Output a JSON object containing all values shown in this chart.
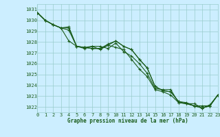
{
  "xlabel": "Graphe pression niveau de la mer (hPa)",
  "ylim": [
    1021.5,
    1031.5
  ],
  "xlim": [
    0,
    23
  ],
  "yticks": [
    1022,
    1023,
    1024,
    1025,
    1026,
    1027,
    1028,
    1029,
    1030,
    1031
  ],
  "xticks": [
    0,
    1,
    2,
    3,
    4,
    5,
    6,
    7,
    8,
    9,
    10,
    11,
    12,
    13,
    14,
    15,
    16,
    17,
    18,
    19,
    20,
    21,
    22,
    23
  ],
  "bg_color": "#cceeff",
  "grid_color": "#99cccc",
  "line_color": "#1a5c1a",
  "tick_color": "#1a5c1a",
  "lines": [
    [
      1030.7,
      1030.0,
      1029.6,
      1029.3,
      1028.1,
      1027.6,
      1027.5,
      1027.6,
      1027.6,
      1027.4,
      1027.9,
      1027.1,
      1026.7,
      1026.0,
      1025.1,
      1023.7,
      1023.6,
      1023.6,
      1022.4,
      1022.3,
      1022.3,
      1021.9,
      1022.2,
      1023.1
    ],
    [
      1030.7,
      1030.0,
      1029.6,
      1029.3,
      1029.1,
      1027.6,
      1027.4,
      1027.6,
      1027.3,
      1027.7,
      1027.5,
      1027.3,
      1026.4,
      1025.5,
      1024.8,
      1023.6,
      1023.4,
      1023.1,
      1022.4,
      1022.3,
      1022.1,
      1021.9,
      1022.1,
      1023.1
    ],
    [
      1030.7,
      1030.0,
      1029.6,
      1029.3,
      1029.4,
      1027.6,
      1027.5,
      1027.4,
      1027.4,
      1027.8,
      1028.1,
      1027.6,
      1027.3,
      1026.4,
      1025.6,
      1023.9,
      1023.5,
      1023.4,
      1022.5,
      1022.4,
      1022.1,
      1022.1,
      1022.1,
      1023.1
    ],
    [
      1030.7,
      1030.0,
      1029.6,
      1029.3,
      1029.3,
      1027.6,
      1027.5,
      1027.4,
      1027.4,
      1027.7,
      1028.1,
      1027.6,
      1027.3,
      1026.4,
      1025.6,
      1023.9,
      1023.5,
      1023.4,
      1022.5,
      1022.3,
      1022.1,
      1021.9,
      1022.1,
      1023.1
    ]
  ],
  "tick_fontsize": 5.0,
  "xlabel_fontsize": 5.5
}
